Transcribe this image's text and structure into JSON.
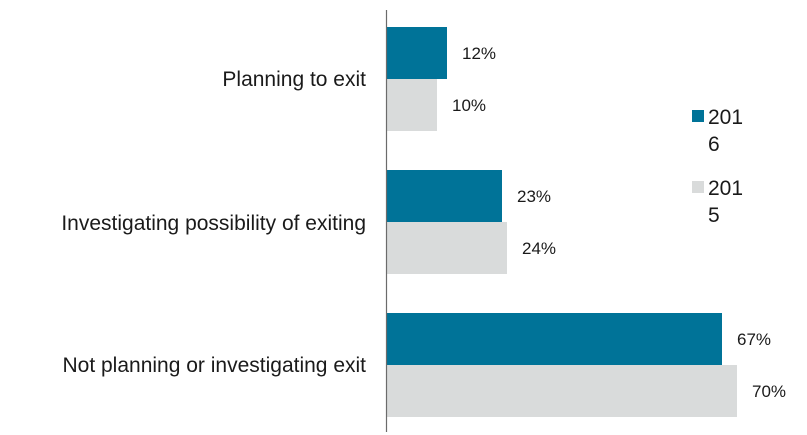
{
  "chart_data": {
    "type": "bar",
    "orientation": "horizontal",
    "categories": [
      "Planning to exit",
      "Investigating possibility of exiting",
      "Not planning or investigating exit"
    ],
    "series": [
      {
        "name": "2016",
        "values": [
          12,
          23,
          67
        ],
        "labels": [
          "12%",
          "23%",
          "67%"
        ],
        "color": "#007398"
      },
      {
        "name": "2015",
        "values": [
          10,
          24,
          70
        ],
        "labels": [
          "10%",
          "24%",
          "70%"
        ],
        "color": "#d9dbdb"
      }
    ],
    "value_unit": "%",
    "xlim": [
      0,
      70
    ],
    "legend": {
      "position": "right",
      "entries": [
        {
          "line1": "201",
          "line2": "6"
        },
        {
          "line1": "201",
          "line2": "5"
        }
      ]
    },
    "grid": false,
    "title": "",
    "xlabel": "",
    "ylabel": ""
  }
}
